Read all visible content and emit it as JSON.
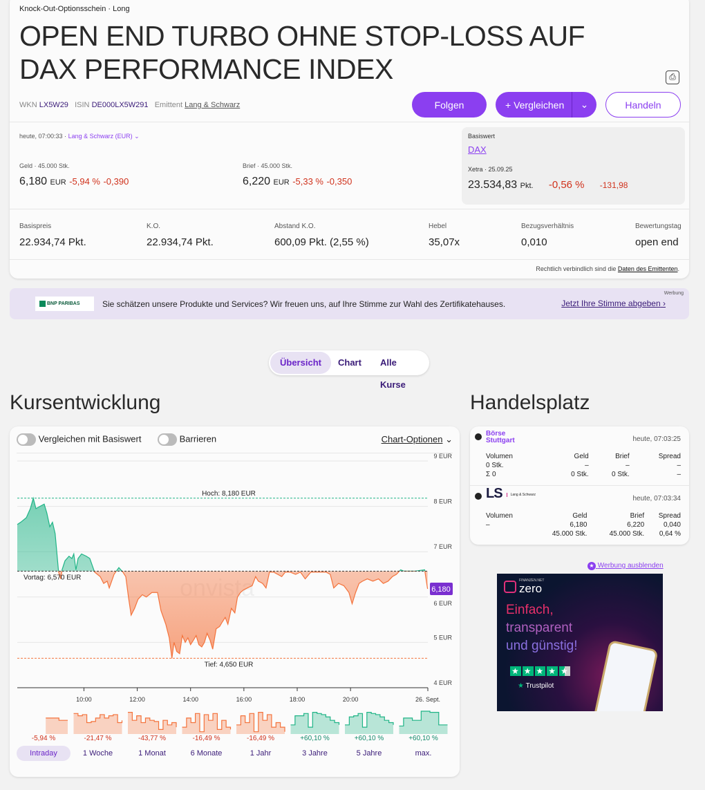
{
  "header": {
    "category": "Knock-Out-Optionsschein · Long",
    "title_line1": "OPEN END TURBO OHNE STOP-LOSS AUF",
    "title_line2": "DAX PERFORMANCE INDEX",
    "wkn_label": "WKN",
    "wkn": "LX5W29",
    "isin_label": "ISIN",
    "isin": "DE000LX5W291",
    "emittent_label": "Emittent",
    "emittent": "Lang & Schwarz",
    "follow": "Folgen",
    "compare": "+ Vergleichen",
    "trade": "Handeln"
  },
  "quote": {
    "time": "heute, 07:00:33 ·",
    "venue": "Lang & Schwarz (EUR)",
    "bid": {
      "label": "Geld · 45.000 Stk.",
      "value": "6,180",
      "cur": "EUR",
      "pct": "-5,94 %",
      "abs": "-0,390"
    },
    "ask": {
      "label": "Brief · 45.000 Stk.",
      "value": "6,220",
      "cur": "EUR",
      "pct": "-5,33 %",
      "abs": "-0,350"
    }
  },
  "underlying": {
    "label": "Basiswert",
    "name": "DAX",
    "venue": "Xetra · 25.09.25",
    "value": "23.534,83",
    "unit": "Pkt.",
    "pct": "-0,56 %",
    "abs": "-131,98"
  },
  "keyfacts": [
    {
      "label": "Basispreis",
      "value": "22.934,74 Pkt."
    },
    {
      "label": "K.O.",
      "value": "22.934,74 Pkt."
    },
    {
      "label": "Abstand K.O.",
      "value": "600,09 Pkt. (2,55 %)"
    },
    {
      "label": "Hebel",
      "value": "35,07x"
    },
    {
      "label": "Bezugsverhältnis",
      "value": "0,010"
    },
    {
      "label": "Bewertungstag",
      "value": "open end"
    }
  ],
  "legal": {
    "text": "Rechtlich verbindlich sind die",
    "link": "Daten des Emittenten",
    "end": "."
  },
  "banner": {
    "logo": "BNP PARIBAS",
    "text": "Sie schätzen unsere Produkte und Services? Wir freuen uns, auf Ihre Stimme zur Wahl des Zertifikatehauses.",
    "link": "Jetzt Ihre Stimme abgeben",
    "ad": "Werbung"
  },
  "tabs": [
    "Übersicht",
    "Chart",
    "Alle Kurse"
  ],
  "chart_section": {
    "title": "Kursentwicklung",
    "toggle1": "Vergleichen mit Basiswert",
    "toggle2": "Barrieren",
    "options": "Chart-Optionen"
  },
  "chart_data": {
    "type": "area",
    "ylim": [
      4,
      9
    ],
    "xlim": [
      7.5,
      22.9
    ],
    "yticks": [
      "9 EUR",
      "8 EUR",
      "7 EUR",
      "6 EUR",
      "5 EUR",
      "4 EUR"
    ],
    "xticks": [
      {
        "h": 10,
        "label": "10:00"
      },
      {
        "h": 12,
        "label": "12:00"
      },
      {
        "h": 14,
        "label": "14:00"
      },
      {
        "h": 16,
        "label": "16:00"
      },
      {
        "h": 18,
        "label": "18:00"
      },
      {
        "h": 20,
        "label": "20:00"
      },
      {
        "h": 22.9,
        "label": "26. Sept."
      }
    ],
    "high": 8.18,
    "high_label": "Hoch: 8,180 EUR",
    "low": 4.65,
    "low_label": "Tief: 4,650 EUR",
    "prev": 6.57,
    "prev_label": "Vortag: 6,570 EUR",
    "last_label": "6,180",
    "watermark": "onvista",
    "points": [
      [
        7.5,
        7.6
      ],
      [
        7.63,
        7.65
      ],
      [
        7.84,
        7.75
      ],
      [
        7.99,
        7.95
      ],
      [
        8.1,
        8.18
      ],
      [
        8.2,
        7.95
      ],
      [
        8.35,
        8.0
      ],
      [
        8.51,
        8.05
      ],
      [
        8.61,
        7.85
      ],
      [
        8.72,
        7.55
      ],
      [
        8.82,
        7.65
      ],
      [
        8.92,
        7.4
      ],
      [
        9.05,
        6.55
      ],
      [
        9.13,
        6.4
      ],
      [
        9.18,
        6.6
      ],
      [
        9.29,
        6.8
      ],
      [
        9.44,
        6.9
      ],
      [
        9.55,
        6.85
      ],
      [
        9.62,
        6.95
      ],
      [
        9.7,
        6.6
      ],
      [
        9.78,
        6.85
      ],
      [
        9.91,
        6.95
      ],
      [
        10.09,
        6.9
      ],
      [
        10.22,
        6.85
      ],
      [
        10.4,
        6.55
      ],
      [
        10.61,
        6.45
      ],
      [
        10.74,
        6.3
      ],
      [
        10.87,
        6.35
      ],
      [
        10.95,
        6.2
      ],
      [
        11.13,
        6.5
      ],
      [
        11.31,
        6.65
      ],
      [
        11.46,
        6.55
      ],
      [
        11.57,
        6.45
      ],
      [
        11.67,
        6.0
      ],
      [
        11.77,
        5.6
      ],
      [
        11.9,
        5.75
      ],
      [
        12.03,
        5.95
      ],
      [
        12.19,
        6.05
      ],
      [
        12.34,
        6.0
      ],
      [
        12.55,
        6.1
      ],
      [
        12.76,
        6.1
      ],
      [
        12.89,
        5.7
      ],
      [
        13.07,
        5.4
      ],
      [
        13.2,
        5.1
      ],
      [
        13.3,
        4.65
      ],
      [
        13.38,
        5.0
      ],
      [
        13.48,
        4.8
      ],
      [
        13.59,
        4.75
      ],
      [
        13.69,
        5.15
      ],
      [
        13.8,
        5.0
      ],
      [
        13.9,
        5.1
      ],
      [
        14.0,
        4.95
      ],
      [
        14.11,
        5.05
      ],
      [
        14.21,
        5.15
      ],
      [
        14.31,
        4.95
      ],
      [
        14.42,
        4.9
      ],
      [
        14.52,
        5.0
      ],
      [
        14.62,
        5.2
      ],
      [
        14.73,
        5.05
      ],
      [
        14.83,
        4.85
      ],
      [
        14.96,
        5.3
      ],
      [
        15.09,
        5.35
      ],
      [
        15.19,
        5.45
      ],
      [
        15.3,
        5.55
      ],
      [
        15.4,
        5.4
      ],
      [
        15.53,
        5.75
      ],
      [
        15.66,
        5.65
      ],
      [
        15.76,
        6.0
      ],
      [
        15.87,
        6.1
      ],
      [
        15.97,
        6.15
      ],
      [
        16.13,
        6.2
      ],
      [
        16.31,
        6.25
      ],
      [
        16.44,
        6.45
      ],
      [
        16.54,
        6.35
      ],
      [
        16.7,
        6.3
      ],
      [
        16.83,
        6.2
      ],
      [
        16.96,
        6.55
      ],
      [
        17.11,
        6.55
      ],
      [
        17.27,
        6.5
      ],
      [
        17.42,
        6.45
      ],
      [
        17.55,
        6.55
      ],
      [
        17.73,
        6.55
      ],
      [
        17.94,
        6.5
      ],
      [
        18.12,
        6.55
      ],
      [
        18.3,
        6.4
      ],
      [
        18.51,
        6.55
      ],
      [
        18.72,
        6.55
      ],
      [
        18.9,
        6.55
      ],
      [
        19.08,
        6.55
      ],
      [
        19.24,
        6.5
      ],
      [
        19.37,
        6.2
      ],
      [
        19.55,
        6.3
      ],
      [
        19.75,
        6.25
      ],
      [
        19.94,
        6.1
      ],
      [
        20.06,
        5.85
      ],
      [
        20.19,
        6.1
      ],
      [
        20.32,
        6.3
      ],
      [
        20.45,
        6.35
      ],
      [
        20.63,
        6.4
      ],
      [
        20.84,
        6.35
      ],
      [
        21.05,
        6.4
      ],
      [
        21.23,
        6.3
      ],
      [
        21.41,
        6.35
      ],
      [
        21.57,
        6.45
      ],
      [
        21.72,
        6.5
      ],
      [
        21.88,
        6.6
      ],
      [
        22.01,
        6.57
      ],
      [
        22.4,
        6.57
      ],
      [
        22.78,
        6.6
      ],
      [
        22.89,
        6.18
      ]
    ]
  },
  "ranges": [
    {
      "label": "Intraday",
      "pct": "-5,94 %",
      "up": false,
      "spark": [
        null,
        null,
        null,
        null,
        null,
        null,
        0.7,
        0.7,
        0.7,
        0.6,
        0.6,
        0.6
      ]
    },
    {
      "label": "1 Woche",
      "pct": "-21,47 %",
      "up": false,
      "spark": [
        0.9,
        0.8,
        0.85,
        0.5,
        0.55,
        0.7,
        0.85,
        0.7,
        0.8,
        0.85,
        0.5,
        0.6
      ]
    },
    {
      "label": "1 Monat",
      "pct": "-43,77 %",
      "up": false,
      "spark": [
        0.95,
        0.6,
        0.8,
        0.5,
        0.7,
        0.6,
        0.55,
        0.2,
        0.6,
        0.4,
        0.5,
        0.3
      ]
    },
    {
      "label": "6 Monate",
      "pct": "-16,49 %",
      "up": false,
      "spark": [
        0.3,
        0.7,
        0.5,
        0.9,
        0.1,
        0.85,
        0.6,
        0.9,
        0.2,
        0.6,
        0.3,
        0.2
      ]
    },
    {
      "label": "1 Jahr",
      "pct": "-16,49 %",
      "up": false,
      "spark": [
        0.4,
        0.8,
        0.5,
        0.9,
        0.1,
        0.95,
        0.6,
        0.85,
        0.3,
        0.5,
        0.3,
        0.1
      ]
    },
    {
      "label": "3 Jahre",
      "pct": "+60,10 %",
      "up": true,
      "spark": [
        0.4,
        0.8,
        0.8,
        0.9,
        0.3,
        0.95,
        0.9,
        0.85,
        0.75,
        0.6,
        0.5,
        0.4
      ]
    },
    {
      "label": "5 Jahre",
      "pct": "+60,10 %",
      "up": true,
      "spark": [
        0.4,
        0.75,
        0.8,
        0.9,
        0.3,
        0.95,
        0.9,
        0.85,
        0.75,
        0.6,
        0.5,
        0.4
      ]
    },
    {
      "label": "max.",
      "pct": "+60,10 %",
      "up": true,
      "spark": [
        0.35,
        0.7,
        0.7,
        0.6,
        0.6,
        1.0,
        1.0,
        0.95,
        0.95,
        0.4,
        0.4,
        0.4
      ]
    }
  ],
  "handelsplatz": {
    "title": "Handelsplatz",
    "venues": [
      {
        "logo": "Börse Stuttgart",
        "time": "heute, 07:03:25",
        "head": [
          "Volumen",
          "Geld",
          "Brief",
          "Spread"
        ],
        "rows": [
          [
            "0 Stk.",
            "–",
            "–",
            "–"
          ],
          [
            "Σ 0",
            "0 Stk.",
            "0 Stk.",
            "–"
          ]
        ]
      },
      {
        "logo": "LS",
        "sub": "Lang & Schwarz",
        "time": "heute, 07:03:34",
        "head": [
          "Volumen",
          "Geld",
          "Brief",
          "Spread"
        ],
        "rows": [
          [
            "–",
            "6,180",
            "6,220",
            "0,040"
          ],
          [
            "",
            "45.000 Stk.",
            "45.000 Stk.",
            "0,64 %"
          ]
        ]
      }
    ]
  },
  "ad": {
    "hide": "Werbung ausblenden",
    "brand_small": "FINANZEN.NET",
    "brand": "zero",
    "line1": "Einfach,",
    "line2": "transparent",
    "line3": "und günstig!",
    "trust": "Trustpilot"
  },
  "colors": {
    "accent": "#8b3ff0",
    "up": "#1fb486",
    "down": "#f4733c"
  }
}
